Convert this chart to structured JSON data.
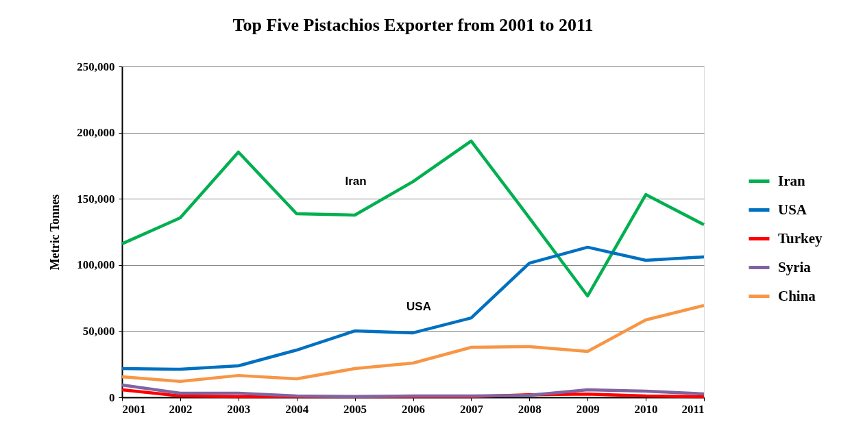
{
  "chart_data": {
    "type": "line",
    "title": "Top Five Pistachios Exporter from 2001 to 2011",
    "ylabel": "Metric Tonnes",
    "x": [
      2001,
      2002,
      2003,
      2004,
      2005,
      2006,
      2007,
      2008,
      2009,
      2010,
      2011
    ],
    "xlim": [
      2001,
      2011
    ],
    "xticks": [
      2001,
      2002,
      2003,
      2004,
      2005,
      2006,
      2007,
      2008,
      2009,
      2010,
      2011
    ],
    "ylim": [
      0,
      250000
    ],
    "yticks": [
      0,
      {
        "value": 50000,
        "label": "50,000"
      },
      {
        "value": 100000,
        "label": "100,000"
      },
      {
        "value": 150000,
        "label": "150,000"
      },
      {
        "value": 200000,
        "label": "200,000"
      },
      {
        "value": 250000,
        "label": "250,000"
      }
    ],
    "grid": "y",
    "legend": "right",
    "marker": "none",
    "line_style": "solid",
    "series": [
      {
        "name": "Iran",
        "color": "#00b050",
        "values": [
          116000,
          135600,
          185300,
          138700,
          137700,
          163000,
          193600,
          135600,
          76600,
          153200,
          130400
        ]
      },
      {
        "name": "USA",
        "color": "#0070c0",
        "values": [
          21700,
          21200,
          23800,
          35700,
          50200,
          48700,
          60000,
          101400,
          113400,
          103500,
          106100
        ]
      },
      {
        "name": "Turkey",
        "color": "#ff0000",
        "values": [
          5700,
          1000,
          500,
          500,
          500,
          500,
          500,
          2000,
          2500,
          1000,
          500
        ]
      },
      {
        "name": "Syria",
        "color": "#8064a2",
        "values": [
          9300,
          3100,
          3100,
          1000,
          500,
          1000,
          1000,
          1500,
          5700,
          4700,
          2600
        ]
      },
      {
        "name": "China",
        "color": "#f79646",
        "values": [
          15500,
          12000,
          16500,
          14000,
          21700,
          25900,
          37800,
          38300,
          34700,
          58500,
          69400
        ]
      }
    ],
    "annotations": [
      "Iran",
      "USA"
    ]
  }
}
